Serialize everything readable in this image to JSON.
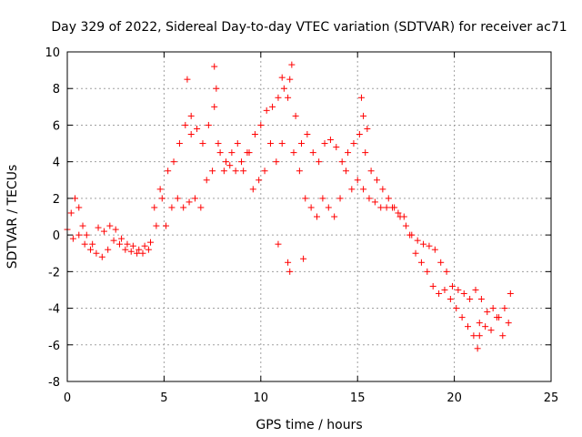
{
  "chart_data": {
    "type": "scatter",
    "title": "Day 329 of 2022, Sidereal Day-to-day VTEC variation (SDTVAR) for receiver ac71",
    "xlabel": "GPS time / hours",
    "ylabel": "SDTVAR / TECUs",
    "xlim": [
      0,
      25
    ],
    "ylim": [
      -8,
      10
    ],
    "xticks": [
      "0",
      "5",
      "10",
      "15",
      "20",
      "25"
    ],
    "yticks": [
      "-8",
      "-6",
      "-4",
      "-2",
      "0",
      "2",
      "4",
      "6",
      "8",
      "10"
    ],
    "grid": true,
    "marker": "+",
    "color": "#ff0000",
    "series": [
      {
        "name": "SDTVAR",
        "x": [
          0.0,
          0.2,
          0.4,
          0.6,
          0.8,
          1.0,
          1.3,
          1.6,
          1.9,
          2.2,
          2.5,
          2.8,
          3.1,
          3.4,
          3.7,
          4.0,
          4.3,
          4.6,
          4.9,
          5.2,
          5.5,
          5.8,
          6.1,
          6.4,
          6.7,
          7.0,
          7.3,
          7.6,
          7.9,
          8.2,
          8.5,
          8.8,
          9.1,
          9.4,
          9.7,
          10.0,
          10.3,
          10.6,
          10.9,
          11.2,
          11.5,
          11.8,
          12.1,
          12.4,
          12.7,
          13.0,
          13.3,
          13.6,
          13.9,
          14.2,
          14.5,
          14.8,
          15.1,
          15.4,
          15.7,
          16.0,
          16.3,
          16.6,
          16.9,
          17.2,
          17.5,
          17.8,
          18.1,
          18.4,
          18.7,
          19.0,
          19.3,
          19.6,
          19.9,
          20.2,
          20.5,
          20.8,
          21.1,
          21.4,
          21.7,
          22.0,
          22.3,
          22.6,
          22.9,
          0.3,
          0.6,
          0.9,
          1.2,
          1.5,
          1.8,
          2.1,
          2.4,
          2.7,
          3.0,
          3.3,
          3.6,
          3.9,
          4.2,
          4.5,
          4.8,
          5.1,
          5.4,
          5.7,
          6.0,
          6.3,
          6.6,
          6.9,
          7.2,
          7.5,
          7.8,
          8.1,
          8.4,
          8.7,
          9.0,
          9.3,
          9.6,
          9.9,
          10.2,
          10.5,
          10.8,
          11.1,
          11.4,
          11.7,
          12.0,
          12.3,
          12.6,
          12.9,
          13.2,
          13.5,
          13.8,
          14.1,
          14.4,
          14.7,
          15.0,
          15.3,
          15.6,
          15.9,
          16.2,
          16.5,
          16.8,
          17.1,
          17.4,
          17.7,
          18.0,
          18.3,
          18.6,
          18.9,
          19.2,
          19.5,
          19.8,
          20.1,
          20.4,
          20.7,
          21.0,
          21.3,
          21.6,
          21.9,
          22.2,
          22.5,
          22.8,
          6.2,
          6.4,
          7.6,
          7.7,
          10.9,
          11.1,
          11.4,
          11.5,
          11.6,
          12.2,
          15.2,
          15.3,
          15.5,
          21.2,
          21.3
        ],
        "y": [
          0.3,
          1.2,
          2.0,
          1.5,
          0.5,
          0.0,
          -0.5,
          0.4,
          0.2,
          0.5,
          0.3,
          -0.2,
          -0.5,
          -0.6,
          -0.8,
          -0.6,
          -0.4,
          0.5,
          2.0,
          3.5,
          4.0,
          5.0,
          6.0,
          6.5,
          5.8,
          5.0,
          6.0,
          7.0,
          4.5,
          4.0,
          4.5,
          5.0,
          3.5,
          4.5,
          5.5,
          6.0,
          6.8,
          7.0,
          7.5,
          8.0,
          8.5,
          6.5,
          5.0,
          5.5,
          4.5,
          4.0,
          5.0,
          5.2,
          4.8,
          4.0,
          4.5,
          5.0,
          5.5,
          4.5,
          3.5,
          3.0,
          2.5,
          2.0,
          1.5,
          1.0,
          0.5,
          0.0,
          -0.3,
          -0.5,
          -0.6,
          -0.8,
          -1.5,
          -2.0,
          -2.8,
          -3.0,
          -3.2,
          -3.5,
          -3.0,
          -3.5,
          -4.2,
          -4.0,
          -4.5,
          -4.0,
          -3.2,
          -0.2,
          0.0,
          -0.5,
          -0.8,
          -1.0,
          -1.2,
          -0.8,
          -0.3,
          -0.5,
          -0.8,
          -0.9,
          -1.0,
          -1.0,
          -0.8,
          1.5,
          2.5,
          0.5,
          1.5,
          2.0,
          1.5,
          1.8,
          2.0,
          1.5,
          3.0,
          3.5,
          5.0,
          3.5,
          3.8,
          3.5,
          4.0,
          4.5,
          2.5,
          3.0,
          3.5,
          5.0,
          4.0,
          5.0,
          7.5,
          4.5,
          3.5,
          2.0,
          1.5,
          1.0,
          2.0,
          1.5,
          1.0,
          2.0,
          3.5,
          2.5,
          3.0,
          2.5,
          2.0,
          1.8,
          1.5,
          1.5,
          1.5,
          1.2,
          1.0,
          0.0,
          -1.0,
          -1.5,
          -2.0,
          -2.8,
          -3.2,
          -3.0,
          -3.5,
          -4.0,
          -4.5,
          -5.0,
          -5.5,
          -4.8,
          -5.0,
          -5.2,
          -4.5,
          -5.5,
          -4.8,
          8.5,
          5.5,
          9.2,
          8.0,
          -0.5,
          8.6,
          -1.5,
          -2.0,
          9.3,
          -1.3,
          7.5,
          6.5,
          5.8,
          -6.2,
          -5.5
        ]
      }
    ]
  }
}
